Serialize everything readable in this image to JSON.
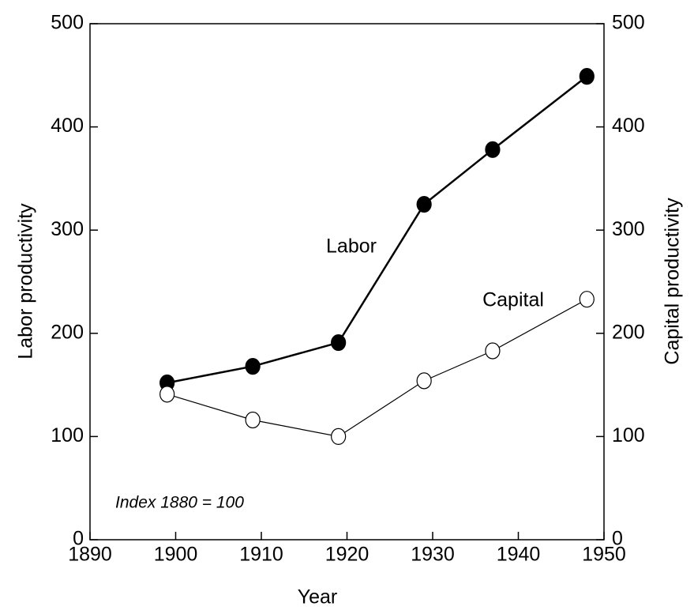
{
  "chart_data": {
    "type": "line",
    "x": [
      1899,
      1909,
      1919,
      1929,
      1937,
      1948
    ],
    "series": [
      {
        "name": "Labor",
        "color": "#000000",
        "marker_fill": "#000000",
        "values": [
          152,
          168,
          191,
          325,
          378,
          449
        ]
      },
      {
        "name": "Capital",
        "color": "#000000",
        "marker_fill": "#ffffff",
        "axis": "y2",
        "values": [
          141,
          116,
          100,
          154,
          183,
          233
        ]
      }
    ],
    "xlabel": "Year",
    "ylabel": "Labor productivity",
    "y2label": "Capital productivity",
    "annotation": "Index 1880 = 100",
    "xlim": [
      1890,
      1950
    ],
    "xticks": [
      1890,
      1900,
      1910,
      1920,
      1930,
      1940,
      1950
    ],
    "ylim": [
      0,
      500
    ],
    "yticks": [
      0,
      100,
      200,
      300,
      400,
      500
    ],
    "y2lim": [
      0,
      500
    ],
    "y2ticks": [
      0,
      100,
      200,
      300,
      400,
      500
    ],
    "grid": false
  }
}
